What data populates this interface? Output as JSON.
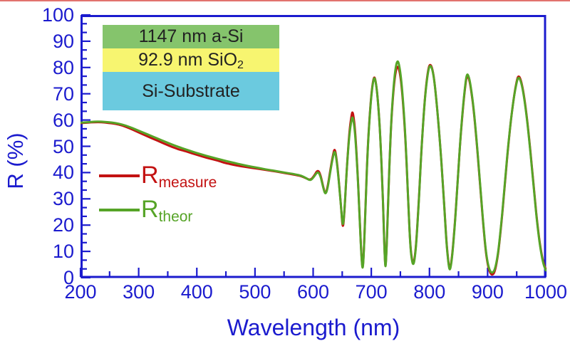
{
  "page": {
    "background": "#FFFFFF",
    "top_border_color": "#E2736E"
  },
  "inset": {
    "layers": [
      {
        "label_main": "1147 nm a-Si",
        "label_sub": "",
        "color": "#85C46C",
        "height": 33
      },
      {
        "label_main": "92.9 nm SiO",
        "label_sub": "2",
        "color": "#F7F570",
        "height": 33
      },
      {
        "label_main": "Si-Substrate",
        "label_sub": "",
        "color": "#6BCADF",
        "height": 54
      }
    ]
  },
  "legend": [
    {
      "main": "R",
      "sub": "measure",
      "color": "#C31212"
    },
    {
      "main": "R",
      "sub": "theor",
      "color": "#56A427"
    }
  ],
  "chart_data": {
    "type": "line",
    "title": "",
    "xlabel": "Wavelength (nm)",
    "ylabel": "R (%)",
    "xlim": [
      200,
      1000
    ],
    "ylim": [
      0,
      100
    ],
    "grid": false,
    "legend_position": "inside-left-middle",
    "axis_color": "#1B1BCE",
    "x_ticks": [
      {
        "value": 200,
        "label": "200"
      },
      {
        "value": 300,
        "label": "300"
      },
      {
        "value": 400,
        "label": "400"
      },
      {
        "value": 500,
        "label": "500"
      },
      {
        "value": 600,
        "label": "600"
      },
      {
        "value": 700,
        "label": "700"
      },
      {
        "value": 800,
        "label": "800"
      },
      {
        "value": 900,
        "label": "900"
      },
      {
        "value": 1000,
        "label": "1000"
      }
    ],
    "x_minor_tick_step": 50,
    "y_ticks": [
      {
        "value": 0,
        "label": "0"
      },
      {
        "value": 10,
        "label": "10"
      },
      {
        "value": 20,
        "label": "20"
      },
      {
        "value": 30,
        "label": "30"
      },
      {
        "value": 40,
        "label": "40"
      },
      {
        "value": 50,
        "label": "50"
      },
      {
        "value": 60,
        "label": "60"
      },
      {
        "value": 70,
        "label": "70"
      },
      {
        "value": 80,
        "label": "80"
      },
      {
        "value": 90,
        "label": "90"
      },
      {
        "value": 100,
        "label": "100"
      }
    ],
    "y_minor_ticks_per_interval": 2,
    "series": [
      {
        "name": "R_measure",
        "color": "#C31212",
        "points": [
          [
            200,
            58.8
          ],
          [
            212,
            59.0
          ],
          [
            224,
            59.2
          ],
          [
            236,
            59.2
          ],
          [
            248,
            58.9
          ],
          [
            260,
            58.6
          ],
          [
            272,
            57.9
          ],
          [
            284,
            56.9
          ],
          [
            296,
            55.7
          ],
          [
            308,
            54.5
          ],
          [
            320,
            53.3
          ],
          [
            332,
            52.2
          ],
          [
            344,
            51.0
          ],
          [
            356,
            49.9
          ],
          [
            362,
            49.4
          ],
          [
            368,
            48.9
          ],
          [
            374,
            48.5
          ],
          [
            380,
            48.2
          ],
          [
            392,
            47.3
          ],
          [
            404,
            46.5
          ],
          [
            416,
            45.7
          ],
          [
            428,
            45.0
          ],
          [
            440,
            44.3
          ],
          [
            446,
            43.8
          ],
          [
            452,
            43.5
          ],
          [
            464,
            42.9
          ],
          [
            476,
            42.4
          ],
          [
            488,
            42.0
          ],
          [
            500,
            41.6
          ],
          [
            512,
            41.2
          ],
          [
            524,
            40.8
          ],
          [
            536,
            40.4
          ],
          [
            548,
            39.9
          ],
          [
            560,
            39.5
          ],
          [
            570,
            39.1
          ],
          [
            580,
            38.6
          ],
          [
            588,
            37.8
          ],
          [
            595,
            37.1
          ],
          [
            601,
            38.5
          ],
          [
            608,
            41.2
          ],
          [
            613,
            39.0
          ],
          [
            617,
            34.8
          ],
          [
            621,
            31.6
          ],
          [
            625,
            34.5
          ],
          [
            630,
            41.6
          ],
          [
            634,
            46.6
          ],
          [
            637,
            49.4
          ],
          [
            640,
            46.0
          ],
          [
            644,
            37.5
          ],
          [
            648,
            27.0
          ],
          [
            651,
            17.6
          ],
          [
            654,
            25.5
          ],
          [
            658,
            42.0
          ],
          [
            662,
            55.0
          ],
          [
            666,
            62.0
          ],
          [
            668,
            63.4
          ],
          [
            671,
            59.0
          ],
          [
            674,
            50.0
          ],
          [
            677,
            37.5
          ],
          [
            680,
            22.5
          ],
          [
            683,
            8.5
          ],
          [
            685,
            2.9
          ],
          [
            687,
            8.5
          ],
          [
            690,
            26.5
          ],
          [
            693,
            45.5
          ],
          [
            697,
            61.5
          ],
          [
            701,
            72.0
          ],
          [
            705,
            77.4
          ],
          [
            709,
            73.0
          ],
          [
            713,
            63.0
          ],
          [
            716,
            51.0
          ],
          [
            719,
            36.0
          ],
          [
            721,
            22.0
          ],
          [
            723,
            8.5
          ],
          [
            724.5,
            3.4
          ],
          [
            726,
            9.5
          ],
          [
            728,
            22.5
          ],
          [
            731,
            42.0
          ],
          [
            734,
            58.5
          ],
          [
            738,
            71.0
          ],
          [
            741,
            77.5
          ],
          [
            745,
            81.0
          ],
          [
            749,
            78.5
          ],
          [
            753,
            71.0
          ],
          [
            757,
            59.0
          ],
          [
            761,
            42.5
          ],
          [
            764,
            26.0
          ],
          [
            767,
            12.5
          ],
          [
            770,
            6.5
          ],
          [
            772.5,
            5.2
          ],
          [
            775,
            8.0
          ],
          [
            778,
            15.5
          ],
          [
            782,
            30.5
          ],
          [
            786,
            48.0
          ],
          [
            790,
            62.0
          ],
          [
            794,
            73.0
          ],
          [
            798,
            79.5
          ],
          [
            801,
            81.4
          ],
          [
            805,
            79.8
          ],
          [
            809,
            74.0
          ],
          [
            813,
            65.0
          ],
          [
            818,
            52.0
          ],
          [
            823,
            36.0
          ],
          [
            827,
            21.5
          ],
          [
            830,
            11.5
          ],
          [
            833,
            5.0
          ],
          [
            835,
            3.1
          ],
          [
            837,
            5.0
          ],
          [
            840,
            10.5
          ],
          [
            844,
            21.5
          ],
          [
            848,
            35.0
          ],
          [
            852,
            49.0
          ],
          [
            856,
            60.5
          ],
          [
            860,
            70.0
          ],
          [
            864,
            77.3
          ],
          [
            868,
            76.0
          ],
          [
            872,
            71.0
          ],
          [
            877,
            62.0
          ],
          [
            882,
            49.5
          ],
          [
            887,
            35.5
          ],
          [
            892,
            21.5
          ],
          [
            896,
            11.5
          ],
          [
            900,
            5.0
          ],
          [
            904,
            1.9
          ],
          [
            908,
            0.9
          ],
          [
            912,
            2.0
          ],
          [
            916,
            6.0
          ],
          [
            920,
            12.5
          ],
          [
            925,
            23.5
          ],
          [
            930,
            36.5
          ],
          [
            935,
            49.0
          ],
          [
            940,
            60.0
          ],
          [
            945,
            68.5
          ],
          [
            950,
            75.0
          ],
          [
            953,
            77.0
          ],
          [
            957,
            75.5
          ],
          [
            961,
            71.5
          ],
          [
            966,
            64.0
          ],
          [
            971,
            54.0
          ],
          [
            976,
            42.5
          ],
          [
            981,
            30.5
          ],
          [
            986,
            19.5
          ],
          [
            991,
            11.0
          ],
          [
            996,
            5.5
          ],
          [
            1000,
            3.2
          ]
        ]
      },
      {
        "name": "R_theor",
        "color": "#56A427",
        "points": [
          [
            200,
            59.0
          ],
          [
            212,
            59.2
          ],
          [
            224,
            59.4
          ],
          [
            236,
            59.4
          ],
          [
            248,
            59.2
          ],
          [
            260,
            58.9
          ],
          [
            272,
            58.3
          ],
          [
            284,
            57.4
          ],
          [
            296,
            56.3
          ],
          [
            308,
            55.2
          ],
          [
            320,
            54.1
          ],
          [
            332,
            53.0
          ],
          [
            344,
            51.9
          ],
          [
            356,
            50.8
          ],
          [
            368,
            49.8
          ],
          [
            380,
            48.9
          ],
          [
            392,
            48.0
          ],
          [
            404,
            47.2
          ],
          [
            416,
            46.4
          ],
          [
            428,
            45.7
          ],
          [
            440,
            45.0
          ],
          [
            452,
            44.3
          ],
          [
            464,
            43.7
          ],
          [
            476,
            43.1
          ],
          [
            488,
            42.5
          ],
          [
            500,
            42.0
          ],
          [
            512,
            41.5
          ],
          [
            524,
            41.0
          ],
          [
            536,
            40.6
          ],
          [
            548,
            40.1
          ],
          [
            560,
            39.7
          ],
          [
            570,
            39.3
          ],
          [
            580,
            38.8
          ],
          [
            588,
            37.9
          ],
          [
            595,
            36.9
          ],
          [
            601,
            38.2
          ],
          [
            608,
            40.6
          ],
          [
            613,
            38.5
          ],
          [
            617,
            34.5
          ],
          [
            621,
            31.4
          ],
          [
            625,
            34.0
          ],
          [
            630,
            41.0
          ],
          [
            634,
            46.0
          ],
          [
            637,
            48.5
          ],
          [
            640,
            45.5
          ],
          [
            644,
            37.0
          ],
          [
            648,
            27.0
          ],
          [
            651,
            18.4
          ],
          [
            654,
            26.0
          ],
          [
            658,
            42.0
          ],
          [
            662,
            54.0
          ],
          [
            666,
            60.3
          ],
          [
            668,
            61.4
          ],
          [
            671,
            57.5
          ],
          [
            674,
            49.0
          ],
          [
            677,
            37.0
          ],
          [
            680,
            22.0
          ],
          [
            683,
            8.0
          ],
          [
            685,
            2.4
          ],
          [
            687,
            8.0
          ],
          [
            690,
            26.0
          ],
          [
            693,
            45.0
          ],
          [
            697,
            61.0
          ],
          [
            701,
            71.5
          ],
          [
            705,
            77.1
          ],
          [
            709,
            73.0
          ],
          [
            713,
            63.0
          ],
          [
            716,
            51.0
          ],
          [
            719,
            36.0
          ],
          [
            721,
            22.0
          ],
          [
            723,
            8.0
          ],
          [
            724.5,
            3.0
          ],
          [
            726,
            9.0
          ],
          [
            728,
            22.0
          ],
          [
            731,
            42.0
          ],
          [
            734,
            59.0
          ],
          [
            738,
            72.0
          ],
          [
            741,
            79.0
          ],
          [
            745,
            83.2
          ],
          [
            749,
            80.0
          ],
          [
            753,
            72.0
          ],
          [
            757,
            60.0
          ],
          [
            761,
            43.0
          ],
          [
            764,
            26.0
          ],
          [
            767,
            12.0
          ],
          [
            770,
            6.0
          ],
          [
            772.5,
            4.8
          ],
          [
            775,
            7.5
          ],
          [
            778,
            15.0
          ],
          [
            782,
            30.0
          ],
          [
            786,
            48.0
          ],
          [
            790,
            62.0
          ],
          [
            794,
            72.5
          ],
          [
            798,
            79.0
          ],
          [
            801,
            81.0
          ],
          [
            805,
            79.5
          ],
          [
            809,
            74.0
          ],
          [
            813,
            65.0
          ],
          [
            818,
            52.0
          ],
          [
            823,
            36.0
          ],
          [
            827,
            21.0
          ],
          [
            830,
            11.0
          ],
          [
            833,
            4.5
          ],
          [
            835,
            2.7
          ],
          [
            837,
            4.5
          ],
          [
            840,
            10.0
          ],
          [
            844,
            21.0
          ],
          [
            848,
            35.0
          ],
          [
            852,
            49.0
          ],
          [
            856,
            61.0
          ],
          [
            860,
            70.5
          ],
          [
            864,
            77.9
          ],
          [
            868,
            76.5
          ],
          [
            872,
            71.5
          ],
          [
            877,
            62.5
          ],
          [
            882,
            50.0
          ],
          [
            887,
            36.0
          ],
          [
            892,
            22.0
          ],
          [
            896,
            12.0
          ],
          [
            900,
            5.5
          ],
          [
            904,
            2.5
          ],
          [
            908,
            1.7
          ],
          [
            912,
            2.8
          ],
          [
            916,
            6.5
          ],
          [
            920,
            13.0
          ],
          [
            925,
            24.0
          ],
          [
            930,
            37.0
          ],
          [
            935,
            49.5
          ],
          [
            940,
            60.0
          ],
          [
            945,
            68.5
          ],
          [
            950,
            74.5
          ],
          [
            953,
            76.5
          ],
          [
            957,
            75.0
          ],
          [
            961,
            71.0
          ],
          [
            966,
            63.5
          ],
          [
            971,
            53.5
          ],
          [
            976,
            42.0
          ],
          [
            981,
            30.0
          ],
          [
            986,
            19.0
          ],
          [
            991,
            10.5
          ],
          [
            996,
            5.0
          ],
          [
            1000,
            2.8
          ]
        ]
      }
    ]
  }
}
